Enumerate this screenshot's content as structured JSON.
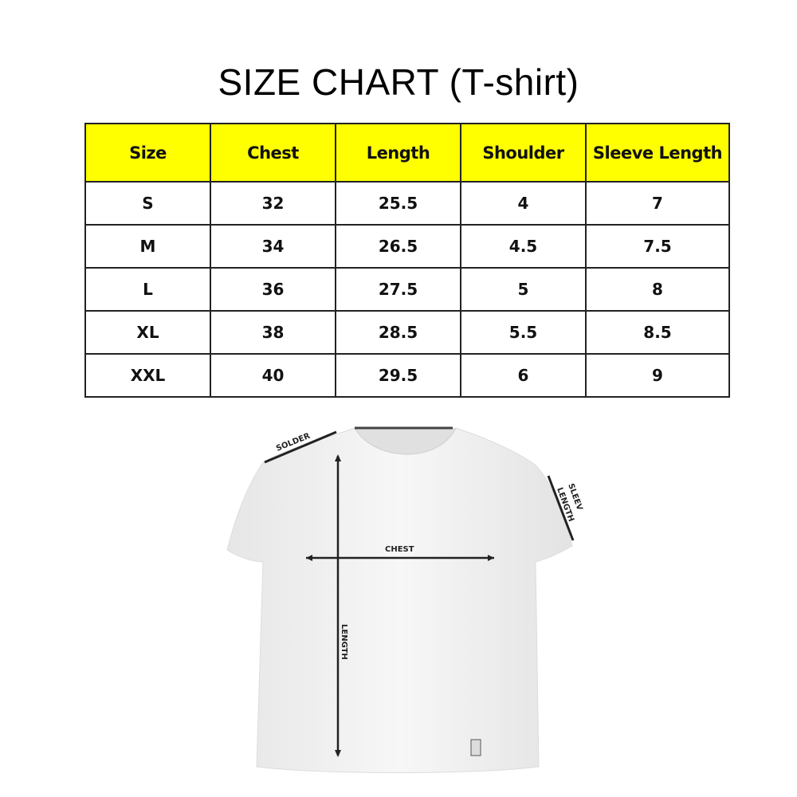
{
  "chart_data": {
    "type": "table",
    "title": "SIZE CHART (T-shirt)",
    "columns": [
      "Size",
      "Chest",
      "Length",
      "Shoulder",
      "Sleeve Length"
    ],
    "rows": [
      [
        "S",
        "32",
        "25.5",
        "4",
        "7"
      ],
      [
        "M",
        "34",
        "26.5",
        "4.5",
        "7.5"
      ],
      [
        "L",
        "36",
        "27.5",
        "5",
        "8"
      ],
      [
        "XL",
        "38",
        "28.5",
        "5.5",
        "8.5"
      ],
      [
        "XXL",
        "40",
        "29.5",
        "6",
        "9"
      ]
    ],
    "header_color": "#ffff00"
  },
  "diagram": {
    "labels": {
      "shoulder": "SOLDER",
      "sleeve_1": "SLEEV",
      "sleeve_2": "LENGTH",
      "chest": "CHEST",
      "length": "LENGTH"
    }
  }
}
